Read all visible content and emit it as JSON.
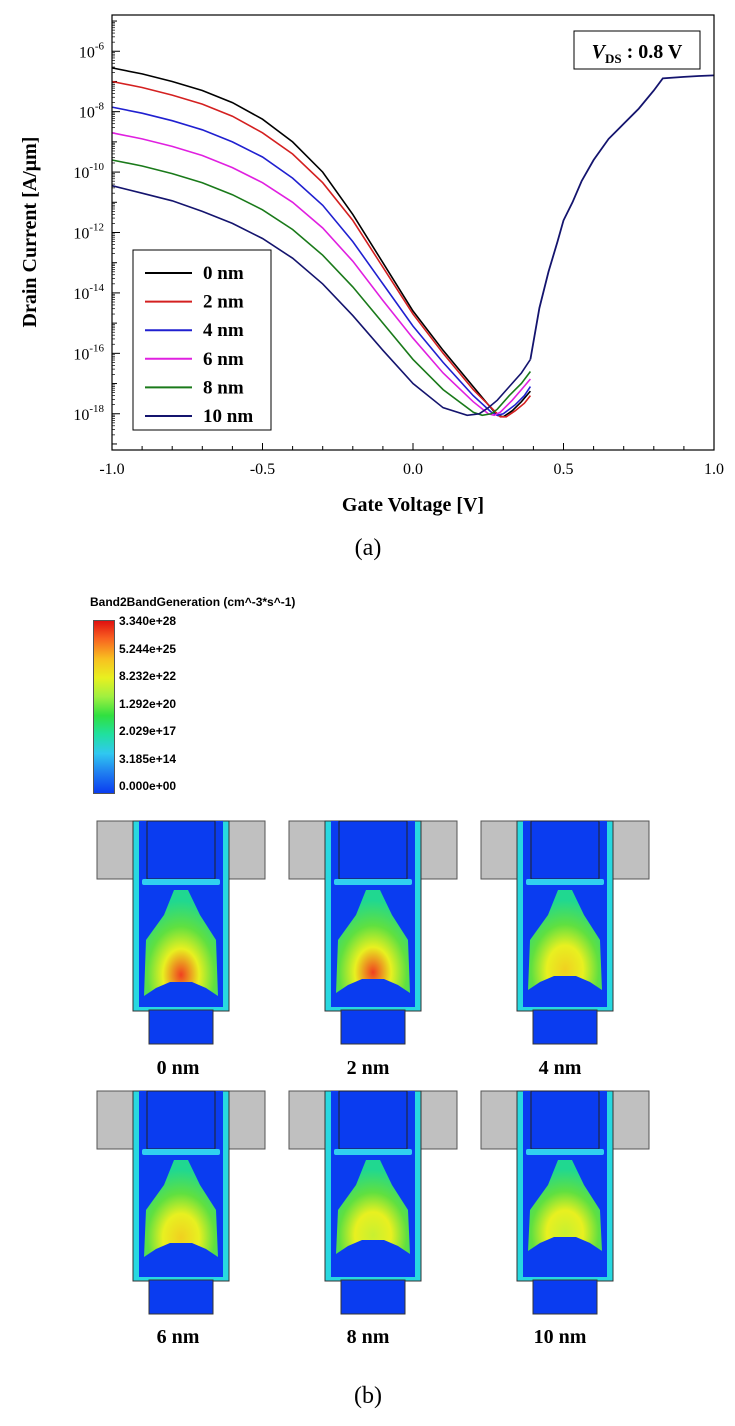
{
  "chart_data": {
    "type": "line",
    "annotation": {
      "var": "V",
      "sub": "DS",
      "rest": " : 0.8 V"
    },
    "xlabel": "Gate Voltage [V]",
    "ylabel": "Drain Current [A/μm]",
    "xlim": [
      -1.0,
      1.0
    ],
    "ylim_log10": [
      -19.2,
      -4.8
    ],
    "x_ticks": [
      "-1.0",
      "-0.5",
      "0.0",
      "0.5",
      "1.0"
    ],
    "y_tick_exponents": [
      "-6",
      "-8",
      "-10",
      "-12",
      "-14",
      "-16",
      "-18"
    ],
    "legend_position": "bottom-left",
    "series": [
      {
        "name": "0 nm",
        "color": "#000000",
        "x": [
          -1.0,
          -0.9,
          -0.8,
          -0.7,
          -0.6,
          -0.5,
          -0.4,
          -0.3,
          -0.2,
          -0.1,
          0.0,
          0.1,
          0.2,
          0.25,
          0.28,
          0.3,
          0.33,
          0.36,
          0.39
        ],
        "y": [
          -6.55,
          -6.75,
          -7.0,
          -7.3,
          -7.7,
          -8.25,
          -9.0,
          -10.0,
          -11.4,
          -13.0,
          -14.6,
          -15.9,
          -17.1,
          -17.7,
          -18.05,
          -18.1,
          -17.9,
          -17.6,
          -17.25
        ]
      },
      {
        "name": "2 nm",
        "color": "#d42020",
        "x": [
          -1.0,
          -0.9,
          -0.8,
          -0.7,
          -0.6,
          -0.5,
          -0.4,
          -0.3,
          -0.2,
          -0.1,
          0.0,
          0.1,
          0.2,
          0.26,
          0.29,
          0.31,
          0.34,
          0.37,
          0.39
        ],
        "y": [
          -7.0,
          -7.2,
          -7.45,
          -7.75,
          -8.15,
          -8.7,
          -9.4,
          -10.35,
          -11.6,
          -13.15,
          -14.7,
          -16.0,
          -17.2,
          -17.8,
          -18.1,
          -18.1,
          -17.9,
          -17.65,
          -17.4
        ]
      },
      {
        "name": "4 nm",
        "color": "#2020d0",
        "x": [
          -1.0,
          -0.9,
          -0.8,
          -0.7,
          -0.6,
          -0.5,
          -0.4,
          -0.3,
          -0.2,
          -0.1,
          0.0,
          0.1,
          0.2,
          0.26,
          0.28,
          0.3,
          0.34,
          0.37,
          0.39
        ],
        "y": [
          -7.85,
          -8.05,
          -8.3,
          -8.6,
          -9.0,
          -9.5,
          -10.2,
          -11.1,
          -12.3,
          -13.7,
          -15.1,
          -16.3,
          -17.4,
          -17.95,
          -18.05,
          -18.0,
          -17.7,
          -17.4,
          -17.1
        ]
      },
      {
        "name": "6 nm",
        "color": "#e020e0",
        "x": [
          -1.0,
          -0.9,
          -0.8,
          -0.7,
          -0.6,
          -0.5,
          -0.4,
          -0.3,
          -0.2,
          -0.1,
          0.0,
          0.1,
          0.2,
          0.25,
          0.27,
          0.29,
          0.33,
          0.36,
          0.39
        ],
        "y": [
          -8.7,
          -8.9,
          -9.15,
          -9.45,
          -9.85,
          -10.35,
          -11.0,
          -11.85,
          -12.95,
          -14.25,
          -15.5,
          -16.65,
          -17.6,
          -18.0,
          -18.05,
          -17.95,
          -17.55,
          -17.2,
          -16.85
        ]
      },
      {
        "name": "8 nm",
        "color": "#1a7a1a",
        "x": [
          -1.0,
          -0.9,
          -0.8,
          -0.7,
          -0.6,
          -0.5,
          -0.4,
          -0.3,
          -0.2,
          -0.1,
          0.0,
          0.1,
          0.2,
          0.23,
          0.26,
          0.28,
          0.32,
          0.36,
          0.39
        ],
        "y": [
          -9.6,
          -9.8,
          -10.05,
          -10.35,
          -10.75,
          -11.25,
          -11.9,
          -12.75,
          -13.8,
          -15.0,
          -16.2,
          -17.2,
          -17.95,
          -18.05,
          -18.0,
          -17.85,
          -17.4,
          -17.0,
          -16.6
        ]
      },
      {
        "name": "10 nm",
        "color": "#14146e",
        "x": [
          -1.0,
          -0.9,
          -0.8,
          -0.7,
          -0.6,
          -0.5,
          -0.4,
          -0.3,
          -0.2,
          -0.1,
          0.0,
          0.1,
          0.18,
          0.22,
          0.25,
          0.28,
          0.32,
          0.36,
          0.39
        ],
        "y": [
          -10.45,
          -10.7,
          -10.95,
          -11.3,
          -11.7,
          -12.2,
          -12.85,
          -13.7,
          -14.75,
          -15.9,
          -17.0,
          -17.8,
          -18.05,
          -18.0,
          -17.8,
          -17.55,
          -17.1,
          -16.65,
          -16.2
        ]
      }
    ],
    "common_branch": {
      "x": [
        0.39,
        0.42,
        0.45,
        0.48,
        0.5,
        0.53,
        0.56,
        0.6,
        0.65,
        0.7,
        0.75,
        0.8,
        0.83,
        0.9,
        0.95,
        1.0
      ],
      "y": [
        -16.2,
        -14.5,
        -13.3,
        -12.3,
        -11.6,
        -11.0,
        -10.3,
        -9.6,
        -8.9,
        -8.4,
        -7.9,
        -7.3,
        -6.9,
        -6.85,
        -6.82,
        -6.8
      ]
    }
  },
  "captions": {
    "a": "(a)",
    "b": "(b)"
  },
  "colorbar": {
    "title": "Band2BandGeneration (cm^-3*s^-1)",
    "labels": [
      "3.340e+28",
      "5.244e+25",
      "8.232e+22",
      "1.292e+20",
      "2.029e+17",
      "3.185e+14",
      "0.000e+00"
    ]
  },
  "devices": [
    {
      "label": "0 nm"
    },
    {
      "label": "2 nm"
    },
    {
      "label": "4 nm"
    },
    {
      "label": "6 nm"
    },
    {
      "label": "8 nm"
    },
    {
      "label": "10 nm"
    }
  ],
  "colors": {
    "orange": "#f7941d",
    "gray": "#c0c0c0",
    "blue": "#0a3cf0",
    "cyan": "#28d8e0",
    "magenta": "#e040e0"
  }
}
